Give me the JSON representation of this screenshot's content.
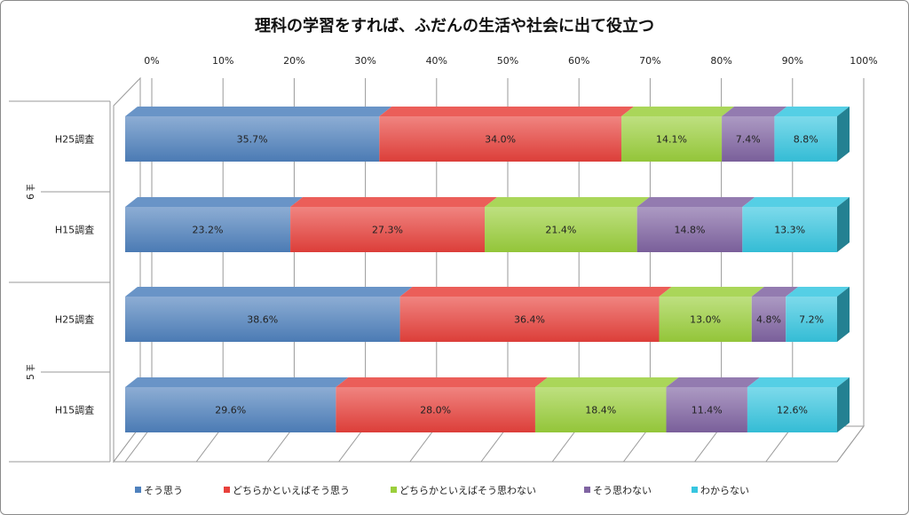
{
  "chart_data": {
    "type": "bar",
    "stacked": "percent",
    "orientation": "horizontal",
    "three_d": true,
    "title": "理科の学習をすれば、ふだんの生活や社会に出て役立つ",
    "xlim": [
      0,
      100
    ],
    "x_ticks": [
      "0%",
      "10%",
      "20%",
      "30%",
      "40%",
      "50%",
      "60%",
      "70%",
      "80%",
      "90%",
      "100%"
    ],
    "groups": [
      {
        "name": "6年",
        "rows": [
          "H25調査",
          "H15調査"
        ]
      },
      {
        "name": "5年",
        "rows": [
          "H25調査",
          "H15調査"
        ]
      }
    ],
    "series": [
      {
        "name": "そう思う",
        "color": "#4f81bd",
        "values": [
          35.7,
          23.2,
          38.6,
          29.6
        ],
        "labels": [
          "35.7%",
          "23.2%",
          "38.6%",
          "29.6%"
        ]
      },
      {
        "name": "どちらかといえばそう思う",
        "color": "#e8413c",
        "values": [
          34.0,
          27.3,
          36.4,
          28.0
        ],
        "labels": [
          "34.0%",
          "27.3%",
          "36.4%",
          "28.0%"
        ]
      },
      {
        "name": "どちらかといえばそう思わない",
        "color": "#9bcf3c",
        "values": [
          14.1,
          21.4,
          13.0,
          18.4
        ],
        "labels": [
          "14.1%",
          "21.4%",
          "13.0%",
          "18.4%"
        ]
      },
      {
        "name": "そう思わない",
        "color": "#8064a2",
        "values": [
          7.4,
          14.8,
          4.8,
          11.4
        ],
        "labels": [
          "7.4%",
          "14.8%",
          "4.8%",
          "11.4%"
        ]
      },
      {
        "name": "わからない",
        "color": "#37c6e0",
        "values": [
          8.8,
          13.3,
          7.2,
          12.6
        ],
        "labels": [
          "8.8%",
          "13.3%",
          "7.2%",
          "12.6%"
        ]
      }
    ],
    "legend_position": "bottom",
    "grid": true
  }
}
